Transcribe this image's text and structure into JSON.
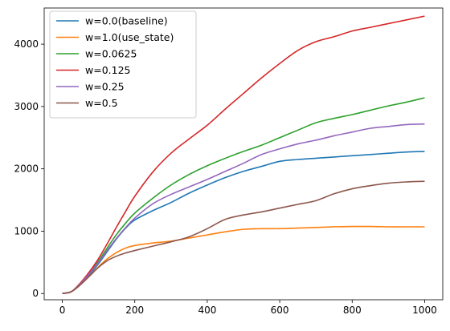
{
  "chart_data": {
    "type": "line",
    "title": "",
    "xlabel": "",
    "ylabel": "",
    "xlim": [
      -50,
      1050
    ],
    "ylim": [
      -100,
      4580
    ],
    "grid": false,
    "legend_placement": "top-left",
    "xticks": [
      0,
      200,
      400,
      600,
      800,
      1000
    ],
    "yticks": [
      0,
      1000,
      2000,
      3000,
      4000
    ],
    "xtick_labels": [
      "0",
      "200",
      "400",
      "600",
      "800",
      "1000"
    ],
    "ytick_labels": [
      "0",
      "1000",
      "2000",
      "3000",
      "4000"
    ],
    "series": [
      {
        "name": "w=0.0(baseline)",
        "color": "#1f77b4",
        "x": [
          0,
          25,
          50,
          75,
          100,
          125,
          150,
          175,
          200,
          250,
          300,
          350,
          400,
          450,
          500,
          550,
          600,
          650,
          700,
          750,
          800,
          850,
          900,
          950,
          1000
        ],
        "y": [
          0,
          30,
          150,
          300,
          480,
          680,
          880,
          1050,
          1180,
          1330,
          1460,
          1610,
          1740,
          1860,
          1960,
          2040,
          2120,
          2150,
          2170,
          2190,
          2210,
          2230,
          2250,
          2270,
          2280
        ]
      },
      {
        "name": "w=1.0(use_state)",
        "color": "#ff7f0e",
        "x": [
          0,
          25,
          50,
          75,
          100,
          125,
          150,
          175,
          200,
          250,
          300,
          350,
          400,
          450,
          500,
          550,
          600,
          650,
          700,
          750,
          800,
          850,
          900,
          950,
          1000
        ],
        "y": [
          0,
          30,
          140,
          280,
          430,
          560,
          660,
          730,
          770,
          810,
          840,
          890,
          940,
          990,
          1030,
          1040,
          1040,
          1050,
          1060,
          1070,
          1075,
          1075,
          1070,
          1070,
          1070
        ]
      },
      {
        "name": "w=0.0625",
        "color": "#2ca02c",
        "x": [
          0,
          25,
          50,
          75,
          100,
          125,
          150,
          175,
          200,
          250,
          300,
          350,
          400,
          450,
          500,
          550,
          600,
          650,
          700,
          750,
          800,
          850,
          900,
          950,
          1000
        ],
        "y": [
          0,
          30,
          160,
          330,
          520,
          740,
          950,
          1130,
          1290,
          1530,
          1740,
          1910,
          2050,
          2170,
          2280,
          2380,
          2500,
          2620,
          2740,
          2810,
          2870,
          2940,
          3010,
          3070,
          3140
        ]
      },
      {
        "name": "w=0.125",
        "color": "#d62728",
        "x": [
          0,
          25,
          50,
          75,
          100,
          125,
          150,
          175,
          200,
          250,
          300,
          350,
          400,
          450,
          500,
          550,
          600,
          650,
          700,
          750,
          800,
          850,
          900,
          950,
          1000
        ],
        "y": [
          0,
          30,
          170,
          350,
          560,
          810,
          1070,
          1320,
          1560,
          1950,
          2250,
          2480,
          2700,
          2960,
          3210,
          3460,
          3690,
          3900,
          4040,
          4120,
          4210,
          4270,
          4330,
          4390,
          4450
        ]
      },
      {
        "name": "w=0.25",
        "color": "#9467bd",
        "x": [
          0,
          25,
          50,
          75,
          100,
          125,
          150,
          175,
          200,
          250,
          300,
          350,
          400,
          450,
          500,
          550,
          600,
          650,
          700,
          750,
          800,
          850,
          900,
          950,
          1000
        ],
        "y": [
          0,
          30,
          155,
          320,
          500,
          700,
          890,
          1060,
          1210,
          1440,
          1590,
          1710,
          1830,
          1960,
          2090,
          2230,
          2320,
          2400,
          2460,
          2530,
          2590,
          2650,
          2680,
          2710,
          2720
        ]
      },
      {
        "name": "w=0.5",
        "color": "#8c564b",
        "x": [
          0,
          25,
          50,
          75,
          100,
          125,
          150,
          175,
          200,
          250,
          300,
          350,
          400,
          450,
          500,
          550,
          600,
          650,
          700,
          750,
          800,
          850,
          900,
          950,
          1000
        ],
        "y": [
          0,
          30,
          140,
          280,
          420,
          530,
          600,
          650,
          690,
          760,
          830,
          910,
          1040,
          1190,
          1260,
          1310,
          1370,
          1430,
          1490,
          1600,
          1680,
          1730,
          1770,
          1790,
          1800
        ]
      }
    ]
  }
}
